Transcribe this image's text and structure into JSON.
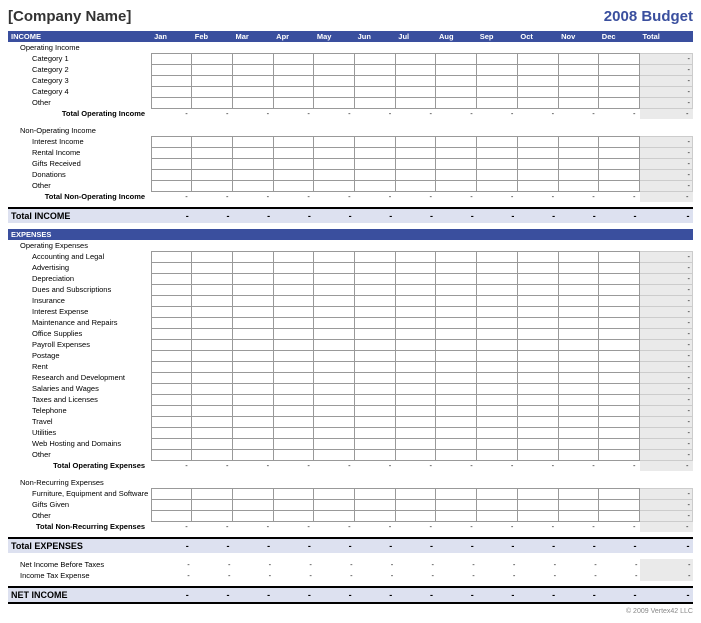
{
  "header": {
    "company": "[Company Name]",
    "title": "2008 Budget"
  },
  "months": [
    "Jan",
    "Feb",
    "Mar",
    "Apr",
    "May",
    "Jun",
    "Jul",
    "Aug",
    "Sep",
    "Oct",
    "Nov",
    "Dec"
  ],
  "total_label": "Total",
  "income": {
    "section_label": "INCOME",
    "operating": {
      "heading": "Operating Income",
      "rows": [
        "Category 1",
        "Category 2",
        "Category 3",
        "Category 4",
        "Other"
      ],
      "subtotal_label": "Total Operating Income"
    },
    "non_operating": {
      "heading": "Non-Operating Income",
      "rows": [
        "Interest Income",
        "Rental Income",
        "Gifts Received",
        "Donations",
        "Other"
      ],
      "subtotal_label": "Total Non-Operating Income"
    },
    "total_label": "Total INCOME"
  },
  "expenses": {
    "section_label": "EXPENSES",
    "operating": {
      "heading": "Operating Expenses",
      "rows": [
        "Accounting and Legal",
        "Advertising",
        "Depreciation",
        "Dues and Subscriptions",
        "Insurance",
        "Interest Expense",
        "Maintenance and Repairs",
        "Office Supplies",
        "Payroll Expenses",
        "Postage",
        "Rent",
        "Research and Development",
        "Salaries and Wages",
        "Taxes and Licenses",
        "Telephone",
        "Travel",
        "Utilities",
        "Web Hosting and Domains",
        "Other"
      ],
      "subtotal_label": "Total Operating Expenses"
    },
    "non_recurring": {
      "heading": "Non-Recurring Expenses",
      "rows": [
        "Furniture, Equipment and Software",
        "Gifts Given",
        "Other"
      ],
      "subtotal_label": "Total Non-Recurring Expenses"
    },
    "total_label": "Total EXPENSES"
  },
  "summary": {
    "net_before_tax": "Net Income Before Taxes",
    "tax_expense": "Income Tax Expense",
    "net_income": "NET INCOME"
  },
  "dash": "-",
  "footer": "© 2009 Vertex42 LLC",
  "colors": {
    "section_bg": "#3a4f9e",
    "section_fg": "#ffffff",
    "total_bg": "#dde1f0",
    "totalcol_bg": "#eaeaea",
    "grid_border": "#999999"
  }
}
